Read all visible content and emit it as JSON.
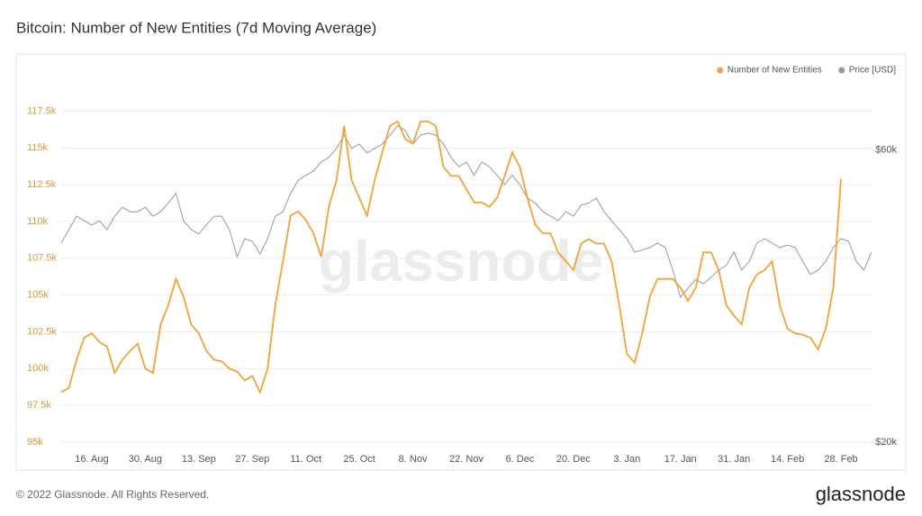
{
  "chart_data": {
    "type": "line",
    "title": "Bitcoin: Number of New Entities (7d Moving Average)",
    "watermark": "glassnode",
    "footer": "© 2022 Glassnode. All Rights Reserved.",
    "logo": "glassnode",
    "categories": [
      null,
      null,
      null,
      null,
      "16. Aug",
      null,
      null,
      null,
      null,
      null,
      null,
      "30. Aug",
      null,
      null,
      null,
      null,
      null,
      null,
      "13. Sep",
      null,
      null,
      null,
      null,
      null,
      null,
      "27. Sep",
      null,
      null,
      null,
      null,
      null,
      null,
      "11. Oct",
      null,
      null,
      null,
      null,
      null,
      null,
      "25. Oct",
      null,
      null,
      null,
      null,
      null,
      null,
      "8. Nov",
      null,
      null,
      null,
      null,
      null,
      null,
      "22. Nov",
      null,
      null,
      null,
      null,
      null,
      null,
      "6. Dec",
      null,
      null,
      null,
      null,
      null,
      null,
      "20. Dec",
      null,
      null,
      null,
      null,
      null,
      null,
      "3. Jan",
      null,
      null,
      null,
      null,
      null,
      null,
      "17. Jan",
      null,
      null,
      null,
      null,
      null,
      null,
      "31. Jan",
      null,
      null,
      null,
      null,
      null,
      null,
      "14. Feb",
      null,
      null,
      null,
      null,
      null,
      null,
      "28. Feb",
      null,
      null,
      null,
      null
    ],
    "series": [
      {
        "name": "Number of New Entities",
        "color": "#f2a33a",
        "axis": "y",
        "values": [
          98400,
          98700,
          100600,
          102100,
          102400,
          101800,
          101500,
          99700,
          100600,
          101200,
          101700,
          100000,
          99700,
          103000,
          104300,
          106100,
          104900,
          103000,
          102400,
          101200,
          100600,
          100500,
          100000,
          99800,
          99200,
          99500,
          98400,
          100000,
          104300,
          107300,
          110400,
          110700,
          110100,
          109200,
          107600,
          111000,
          112800,
          116500,
          112800,
          111600,
          110400,
          112800,
          114700,
          116500,
          116800,
          115600,
          115300,
          116800,
          116800,
          116500,
          113700,
          113100,
          113100,
          112200,
          111300,
          111300,
          111000,
          111600,
          113100,
          114700,
          113700,
          111600,
          109800,
          109200,
          109200,
          107900,
          107300,
          106700,
          108500,
          108800,
          108500,
          108500,
          107300,
          104300,
          101000,
          100400,
          102400,
          104900,
          106100,
          106100,
          106100,
          105500,
          104600,
          105500,
          107900,
          107900,
          106700,
          104300,
          103600,
          103000,
          105500,
          106400,
          106700,
          107300,
          104300,
          102700,
          102400,
          102300,
          102100,
          101300,
          102700,
          105500,
          112900,
          null,
          null,
          null,
          null
        ]
      },
      {
        "name": "Price [USD]",
        "color": "#999999",
        "axis": "y2",
        "values": [
          42300,
          44500,
          46800,
          46000,
          45300,
          46000,
          44500,
          46800,
          48400,
          47600,
          47600,
          48400,
          46800,
          47600,
          49200,
          51000,
          46000,
          44500,
          43800,
          45300,
          46800,
          46800,
          44500,
          40200,
          43000,
          42600,
          40600,
          43000,
          46800,
          47600,
          51000,
          53600,
          54600,
          55500,
          57400,
          58400,
          60400,
          63500,
          60400,
          61400,
          59400,
          60400,
          61400,
          63500,
          65800,
          64600,
          61400,
          63500,
          64000,
          63500,
          61400,
          58400,
          56400,
          57400,
          54600,
          57400,
          56400,
          54600,
          52700,
          54600,
          52700,
          50100,
          49200,
          47600,
          46800,
          46000,
          47600,
          46800,
          48800,
          49200,
          50100,
          47600,
          46000,
          44500,
          43000,
          40900,
          41200,
          41600,
          42300,
          41600,
          38200,
          34500,
          35700,
          36900,
          36300,
          37200,
          38200,
          38900,
          40900,
          38200,
          39500,
          42300,
          43000,
          42300,
          41600,
          42000,
          41600,
          39500,
          37600,
          38200,
          39500,
          41600,
          43000,
          42600,
          39500,
          38200,
          40900
        ]
      }
    ],
    "ylim": [
      95000,
      119000
    ],
    "yticks": [
      {
        "value": 95000,
        "label": "95k"
      },
      {
        "value": 97500,
        "label": "97.5k"
      },
      {
        "value": 100000,
        "label": "100k"
      },
      {
        "value": 102500,
        "label": "102.5k"
      },
      {
        "value": 105000,
        "label": "105k"
      },
      {
        "value": 107500,
        "label": "107.5k"
      },
      {
        "value": 110000,
        "label": "110k"
      },
      {
        "value": 112500,
        "label": "112.5k"
      },
      {
        "value": 115000,
        "label": "115k"
      },
      {
        "value": 117500,
        "label": "117.5k"
      }
    ],
    "y2lim": [
      20000,
      75500
    ],
    "y2ticks": [
      {
        "value": 20000,
        "label": "$20k"
      },
      {
        "value": 60000,
        "label": "$60k"
      }
    ],
    "y2scale": "log",
    "grid": true,
    "legend": "top-right"
  }
}
